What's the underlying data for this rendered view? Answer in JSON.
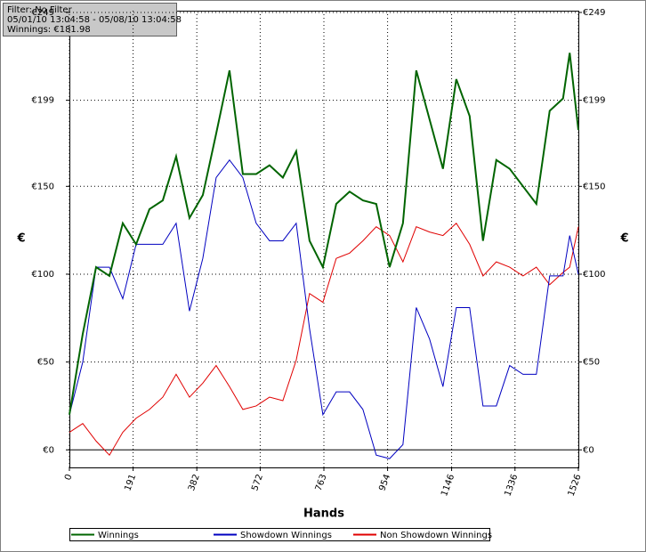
{
  "info": {
    "filter": "Filter: No Filter",
    "range": "05/01/10 13:04:58 - 05/08/10 13:04:58",
    "winnings": "Winnings: €181.98"
  },
  "chart_data": {
    "type": "line",
    "xlabel": "Hands",
    "ylabel": "€",
    "grid": true,
    "legend": "bottom",
    "xlim": [
      0,
      1526
    ],
    "ylim": [
      -10,
      250
    ],
    "xticks": [
      0,
      191,
      382,
      572,
      763,
      954,
      1146,
      1336,
      1526
    ],
    "yticks": [
      {
        "value": 0,
        "label": "€0"
      },
      {
        "value": 50,
        "label": "€50"
      },
      {
        "value": 100,
        "label": "€100"
      },
      {
        "value": 150,
        "label": "€150"
      },
      {
        "value": 199,
        "label": "€199"
      },
      {
        "value": 249,
        "label": "€249"
      }
    ],
    "x": [
      0,
      40,
      80,
      120,
      160,
      200,
      240,
      280,
      320,
      360,
      400,
      440,
      480,
      520,
      560,
      600,
      640,
      680,
      720,
      760,
      800,
      840,
      880,
      920,
      960,
      1000,
      1040,
      1080,
      1120,
      1160,
      1200,
      1240,
      1280,
      1320,
      1360,
      1400,
      1440,
      1480,
      1500,
      1526
    ],
    "series": [
      {
        "name": "Winnings",
        "color": "#006400",
        "values": [
          20,
          66,
          104,
          99,
          129,
          117,
          137,
          142,
          167,
          132,
          145,
          180,
          216,
          157,
          157,
          162,
          155,
          170,
          119,
          104,
          140,
          147,
          142,
          140,
          104,
          129,
          216,
          188,
          160,
          211,
          190,
          119,
          165,
          160,
          150,
          140,
          193,
          200,
          226,
          182
        ]
      },
      {
        "name": "Showdown Winnings",
        "color": "#0000c0",
        "values": [
          20,
          50,
          104,
          104,
          86,
          117,
          117,
          117,
          129,
          79,
          109,
          155,
          165,
          155,
          129,
          119,
          119,
          129,
          69,
          20,
          33,
          33,
          23,
          -3,
          -5,
          3,
          81,
          63,
          36,
          81,
          81,
          25,
          25,
          48,
          43,
          43,
          99,
          99,
          122,
          100
        ]
      },
      {
        "name": "Non Showdown Winnings",
        "color": "#e00000",
        "values": [
          10,
          15,
          5,
          -3,
          10,
          18,
          23,
          30,
          43,
          30,
          38,
          48,
          36,
          23,
          25,
          30,
          28,
          51,
          89,
          84,
          109,
          112,
          119,
          127,
          122,
          107,
          127,
          124,
          122,
          129,
          117,
          99,
          107,
          104,
          99,
          104,
          94,
          101,
          104,
          127
        ]
      }
    ]
  }
}
